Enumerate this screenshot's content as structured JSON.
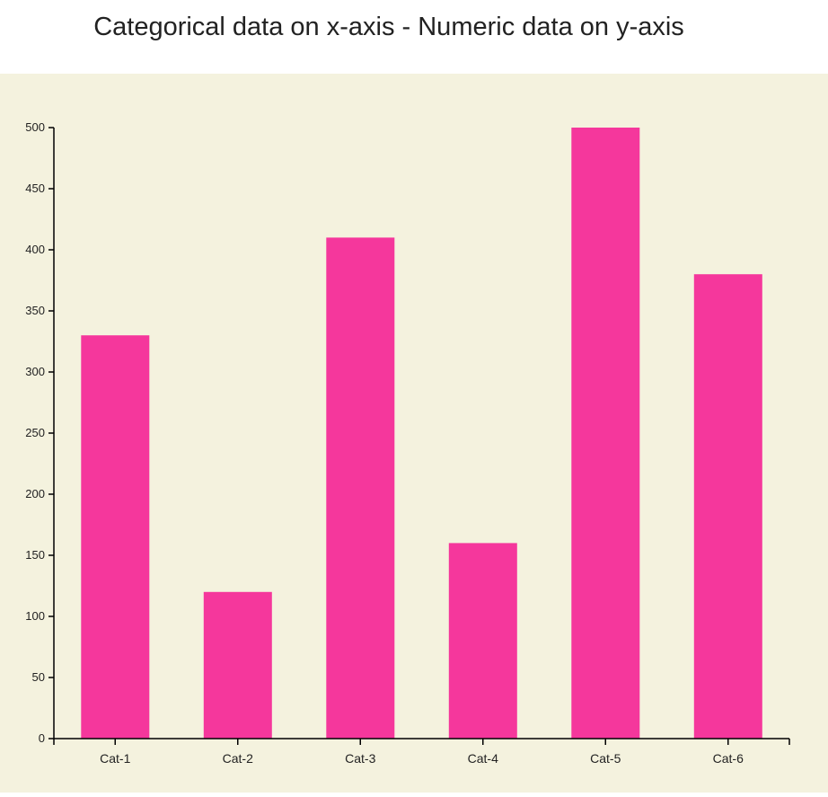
{
  "colors": {
    "background": "#f4f2de",
    "bar": "#f5379c",
    "axis": "#000000"
  },
  "chart_data": {
    "type": "bar",
    "title": "Categorical data on x-axis - Numeric data on y-axis",
    "xlabel": "",
    "ylabel": "",
    "categories": [
      "Cat-1",
      "Cat-2",
      "Cat-3",
      "Cat-4",
      "Cat-5",
      "Cat-6"
    ],
    "values": [
      330,
      120,
      410,
      160,
      500,
      380
    ],
    "ylim": [
      0,
      500
    ],
    "yticks": [
      0,
      50,
      100,
      150,
      200,
      250,
      300,
      350,
      400,
      450,
      500
    ],
    "grid": false,
    "legend": "none"
  }
}
